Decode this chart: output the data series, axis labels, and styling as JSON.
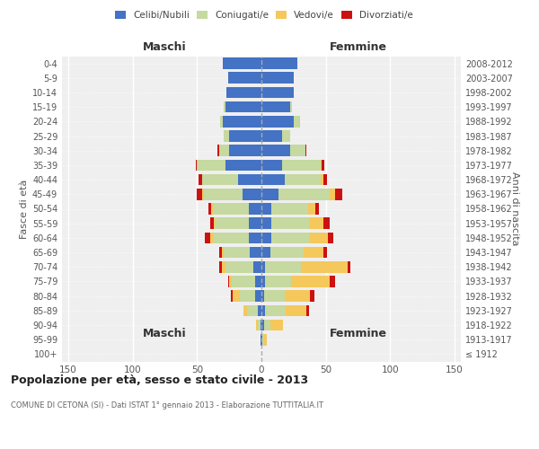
{
  "age_groups": [
    "100+",
    "95-99",
    "90-94",
    "85-89",
    "80-84",
    "75-79",
    "70-74",
    "65-69",
    "60-64",
    "55-59",
    "50-54",
    "45-49",
    "40-44",
    "35-39",
    "30-34",
    "25-29",
    "20-24",
    "15-19",
    "10-14",
    "5-9",
    "0-4"
  ],
  "birth_years": [
    "≤ 1912",
    "1913-1917",
    "1918-1922",
    "1923-1927",
    "1928-1932",
    "1933-1937",
    "1938-1942",
    "1943-1947",
    "1948-1952",
    "1953-1957",
    "1958-1962",
    "1963-1967",
    "1968-1972",
    "1973-1977",
    "1978-1982",
    "1983-1987",
    "1988-1992",
    "1993-1997",
    "1998-2002",
    "2003-2007",
    "2008-2012"
  ],
  "colors": {
    "celibi": "#4472c4",
    "coniugati": "#c5d9a0",
    "vedovi": "#f5c85c",
    "divorziati": "#cc1111"
  },
  "maschi": {
    "celibi": [
      0,
      1,
      1,
      3,
      5,
      5,
      6,
      9,
      10,
      10,
      10,
      15,
      18,
      28,
      25,
      25,
      30,
      28,
      27,
      26,
      30
    ],
    "coniugati": [
      0,
      0,
      2,
      8,
      12,
      18,
      22,
      20,
      28,
      26,
      28,
      30,
      28,
      22,
      8,
      4,
      2,
      1,
      0,
      0,
      0
    ],
    "vedovi": [
      0,
      0,
      1,
      3,
      5,
      2,
      3,
      2,
      2,
      1,
      1,
      1,
      0,
      0,
      0,
      0,
      0,
      0,
      0,
      0,
      0
    ],
    "divorziati": [
      0,
      0,
      0,
      0,
      2,
      1,
      2,
      2,
      4,
      3,
      2,
      4,
      3,
      1,
      1,
      0,
      0,
      0,
      0,
      0,
      0
    ]
  },
  "femmine": {
    "celibi": [
      0,
      1,
      2,
      3,
      2,
      3,
      3,
      7,
      8,
      8,
      8,
      13,
      18,
      16,
      22,
      16,
      25,
      22,
      25,
      25,
      28
    ],
    "coniugati": [
      0,
      1,
      5,
      16,
      16,
      20,
      28,
      26,
      30,
      30,
      28,
      40,
      28,
      30,
      12,
      6,
      4,
      2,
      0,
      0,
      0
    ],
    "vedovi": [
      0,
      2,
      10,
      16,
      20,
      30,
      36,
      15,
      14,
      10,
      6,
      4,
      2,
      1,
      0,
      0,
      1,
      0,
      0,
      0,
      0
    ],
    "divorziati": [
      0,
      0,
      0,
      2,
      3,
      4,
      2,
      3,
      4,
      5,
      3,
      6,
      3,
      2,
      1,
      0,
      0,
      0,
      0,
      0,
      0
    ]
  },
  "xlim": 155,
  "title": "Popolazione per età, sesso e stato civile - 2013",
  "subtitle": "COMUNE DI CETONA (SI) - Dati ISTAT 1° gennaio 2013 - Elaborazione TUTTITALIA.IT",
  "ylabel_left": "Fasce di età",
  "ylabel_right": "Anni di nascita",
  "header_maschi": "Maschi",
  "header_femmine": "Femmine",
  "legend_labels": [
    "Celibi/Nubili",
    "Coniugati/e",
    "Vedovi/e",
    "Divorziati/e"
  ],
  "bg_color": "#efefef"
}
